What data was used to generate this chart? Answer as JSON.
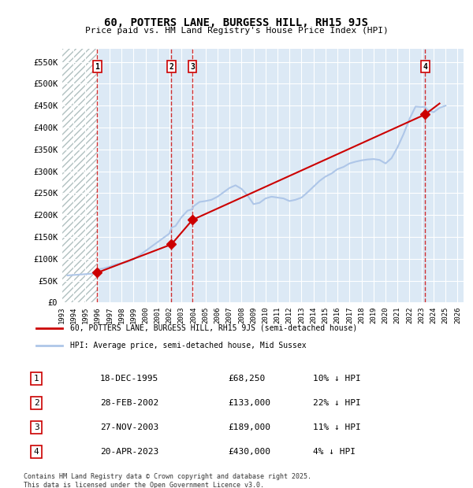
{
  "title": "60, POTTERS LANE, BURGESS HILL, RH15 9JS",
  "subtitle": "Price paid vs. HM Land Registry's House Price Index (HPI)",
  "ylabel_ticks": [
    "£0",
    "£50K",
    "£100K",
    "£150K",
    "£200K",
    "£250K",
    "£300K",
    "£350K",
    "£400K",
    "£450K",
    "£500K",
    "£550K"
  ],
  "ytick_values": [
    0,
    50000,
    100000,
    150000,
    200000,
    250000,
    300000,
    350000,
    400000,
    450000,
    500000,
    550000
  ],
  "ylim": [
    0,
    580000
  ],
  "xmin": 1993.0,
  "xmax": 2026.5,
  "hatch_end": 1995.95,
  "sales": [
    {
      "label": "1",
      "date_str": "18-DEC-1995",
      "year": 1995.97,
      "price": 68250,
      "pct": "10%",
      "dir": "↓"
    },
    {
      "label": "2",
      "date_str": "28-FEB-2002",
      "year": 2002.16,
      "price": 133000,
      "pct": "22%",
      "dir": "↓"
    },
    {
      "label": "3",
      "date_str": "27-NOV-2003",
      "year": 2003.91,
      "price": 189000,
      "pct": "11%",
      "dir": "↓"
    },
    {
      "label": "4",
      "date_str": "20-APR-2023",
      "year": 2023.3,
      "price": 430000,
      "pct": "4%",
      "dir": "↓"
    }
  ],
  "hpi_line_color": "#aec6e8",
  "price_line_color": "#cc0000",
  "sale_marker_color": "#cc0000",
  "vline_color": "#cc0000",
  "bg_plot": "#dce9f5",
  "bg_figure": "#ffffff",
  "grid_color": "#ffffff",
  "hatch_color": "#b0b0b0",
  "legend_line1": "60, POTTERS LANE, BURGESS HILL, RH15 9JS (semi-detached house)",
  "legend_line2": "HPI: Average price, semi-detached house, Mid Sussex",
  "footer": "Contains HM Land Registry data © Crown copyright and database right 2025.\nThis data is licensed under the Open Government Licence v3.0.",
  "hpi_data": {
    "years": [
      1993.5,
      1994.0,
      1994.5,
      1995.0,
      1995.5,
      1995.97,
      1996.5,
      1997.0,
      1997.5,
      1998.0,
      1998.5,
      1999.0,
      1999.5,
      2000.0,
      2000.5,
      2001.0,
      2001.5,
      2002.0,
      2002.16,
      2002.5,
      2003.0,
      2003.5,
      2003.91,
      2004.0,
      2004.5,
      2005.0,
      2005.5,
      2006.0,
      2006.5,
      2007.0,
      2007.5,
      2008.0,
      2008.5,
      2009.0,
      2009.5,
      2010.0,
      2010.5,
      2011.0,
      2011.5,
      2012.0,
      2012.5,
      2013.0,
      2013.5,
      2014.0,
      2014.5,
      2015.0,
      2015.5,
      2016.0,
      2016.5,
      2017.0,
      2017.5,
      2018.0,
      2018.5,
      2019.0,
      2019.5,
      2020.0,
      2020.5,
      2021.0,
      2021.5,
      2022.0,
      2022.5,
      2023.0,
      2023.3,
      2023.5,
      2024.0,
      2024.5,
      2025.0
    ],
    "values": [
      62000,
      63000,
      64000,
      65000,
      66000,
      75833,
      78000,
      82000,
      87000,
      90000,
      93000,
      99000,
      108000,
      118000,
      128000,
      138000,
      148000,
      158000,
      171264,
      175000,
      195000,
      210000,
      213483,
      220000,
      230000,
      232000,
      235000,
      242000,
      252000,
      262000,
      268000,
      260000,
      245000,
      225000,
      228000,
      238000,
      242000,
      240000,
      238000,
      232000,
      235000,
      240000,
      252000,
      265000,
      278000,
      288000,
      295000,
      305000,
      310000,
      318000,
      322000,
      325000,
      327000,
      328000,
      326000,
      318000,
      330000,
      355000,
      385000,
      420000,
      448000,
      447000,
      447368,
      440000,
      435000,
      445000,
      450000
    ]
  },
  "price_data": {
    "years": [
      1995.97,
      2002.16,
      2003.91,
      2023.3,
      2024.5
    ],
    "values": [
      68250,
      133000,
      189000,
      430000,
      455000
    ]
  },
  "xtick_years": [
    1993,
    1994,
    1995,
    1996,
    1997,
    1998,
    1999,
    2000,
    2001,
    2002,
    2003,
    2004,
    2005,
    2006,
    2007,
    2008,
    2009,
    2010,
    2011,
    2012,
    2013,
    2014,
    2015,
    2016,
    2017,
    2018,
    2019,
    2020,
    2021,
    2022,
    2023,
    2024,
    2025,
    2026
  ]
}
